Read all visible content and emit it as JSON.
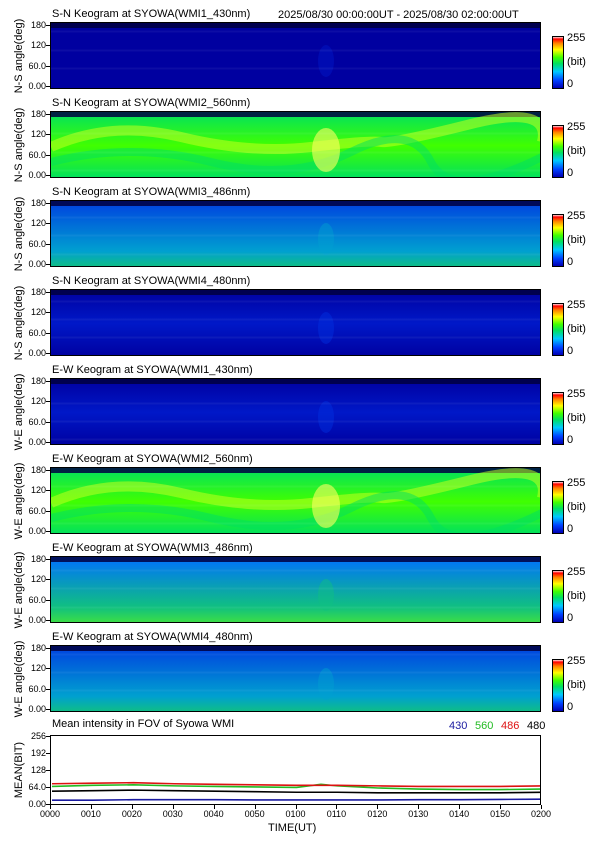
{
  "header": {
    "time_range": "2025/08/30 00:00:00UT - 2025/08/30 02:00:00UT"
  },
  "colorbar": {
    "max_label": "255",
    "unit_label": "(bit)",
    "min_label": "0"
  },
  "y_ticks": [
    "180",
    "120",
    "60.0",
    "0.00"
  ],
  "panels": [
    {
      "title": "S-N Keogram at SYOWA(WMI1_430nm)",
      "ylabel": "N-S angle(deg)",
      "palette": "blue",
      "brightness": 0.08
    },
    {
      "title": "S-N Keogram at SYOWA(WMI2_560nm)",
      "ylabel": "N-S angle(deg)",
      "palette": "green",
      "brightness": 0.55
    },
    {
      "title": "S-N Keogram at SYOWA(WMI3_486nm)",
      "ylabel": "N-S angle(deg)",
      "palette": "teal",
      "brightness": 0.35
    },
    {
      "title": "S-N Keogram at SYOWA(WMI4_480nm)",
      "ylabel": "N-S angle(deg)",
      "palette": "blue",
      "brightness": 0.18
    },
    {
      "title": "E-W Keogram at SYOWA(WMI1_430nm)",
      "ylabel": "W-E angle(deg)",
      "palette": "blue",
      "brightness": 0.12
    },
    {
      "title": "E-W Keogram at SYOWA(WMI2_560nm)",
      "ylabel": "W-E angle(deg)",
      "palette": "green",
      "brightness": 0.6
    },
    {
      "title": "E-W Keogram at SYOWA(WMI3_486nm)",
      "ylabel": "W-E angle(deg)",
      "palette": "teal",
      "brightness": 0.4
    },
    {
      "title": "E-W Keogram at SYOWA(WMI4_480nm)",
      "ylabel": "W-E angle(deg)",
      "palette": "teal",
      "brightness": 0.3
    }
  ],
  "chart_data": {
    "type": "line",
    "title": "Mean intensity in FOV of Syowa WMI",
    "xlabel": "TIME(UT)",
    "ylabel": "MEAN(BIT)",
    "x_ticks": [
      "0000",
      "0010",
      "0020",
      "0030",
      "0040",
      "0050",
      "0100",
      "0110",
      "0120",
      "0130",
      "0140",
      "0150",
      "0200"
    ],
    "y_ticks": [
      256,
      192,
      128,
      64.0,
      0.0
    ],
    "y_tick_labels": [
      "256",
      "192",
      "128",
      "64.0",
      "0.00"
    ],
    "ylim": [
      0,
      256
    ],
    "xlim": [
      0,
      120
    ],
    "legend_placement": "top-right",
    "series": [
      {
        "name": "430",
        "color": "#1a1aa0",
        "x": [
          0,
          10,
          20,
          30,
          40,
          50,
          60,
          70,
          80,
          90,
          100,
          110,
          120
        ],
        "y": [
          18,
          18,
          20,
          20,
          20,
          19,
          19,
          19,
          19,
          20,
          20,
          21,
          22
        ]
      },
      {
        "name": "560",
        "color": "#22bb22",
        "x": [
          0,
          10,
          20,
          30,
          40,
          50,
          60,
          66,
          70,
          80,
          90,
          100,
          110,
          120
        ],
        "y": [
          70,
          74,
          76,
          72,
          70,
          68,
          66,
          78,
          72,
          64,
          60,
          58,
          58,
          60
        ]
      },
      {
        "name": "486",
        "color": "#dd1111",
        "x": [
          0,
          10,
          20,
          30,
          40,
          50,
          60,
          70,
          80,
          90,
          100,
          110,
          120
        ],
        "y": [
          80,
          82,
          84,
          80,
          78,
          76,
          74,
          74,
          72,
          70,
          70,
          70,
          72
        ]
      },
      {
        "name": "480",
        "color": "#000000",
        "x": [
          0,
          10,
          20,
          30,
          40,
          50,
          60,
          70,
          80,
          90,
          100,
          110,
          120
        ],
        "y": [
          52,
          54,
          56,
          54,
          52,
          50,
          48,
          48,
          46,
          46,
          46,
          46,
          48
        ]
      }
    ]
  }
}
